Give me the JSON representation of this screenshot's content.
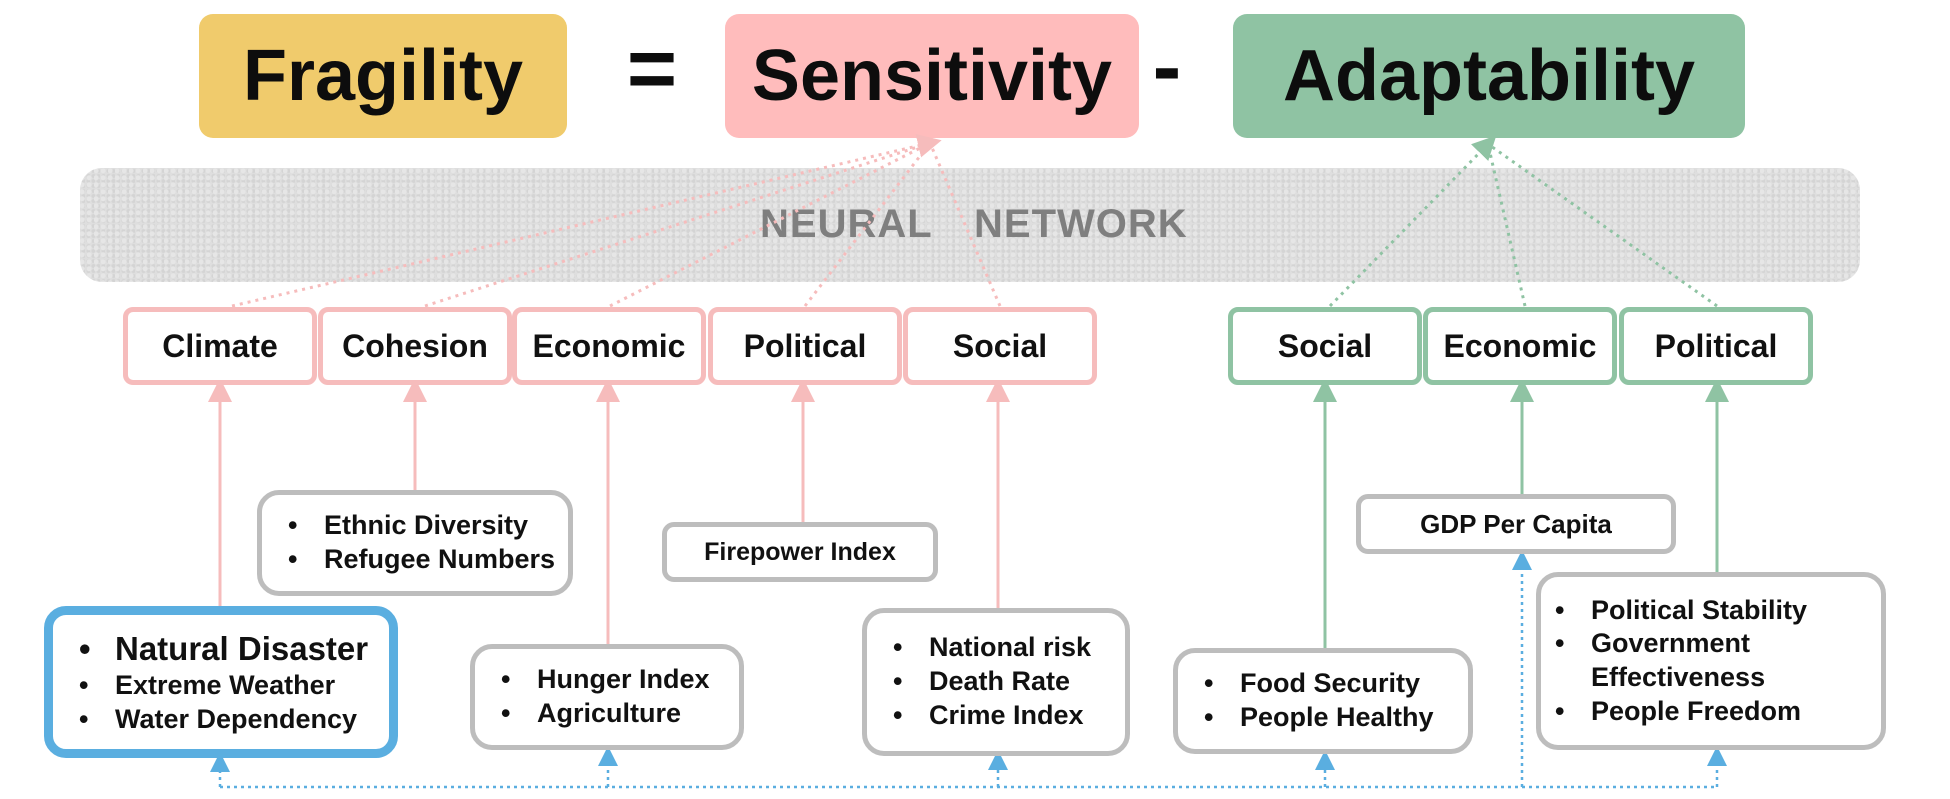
{
  "equation": {
    "fragility": "Fragility",
    "equals": "=",
    "sensitivity": "Sensitivity",
    "minus": "-",
    "adaptability": "Adaptability"
  },
  "network": {
    "word1": "NEURAL",
    "word2": "NETWORK"
  },
  "sensitivity_categories": [
    "Climate",
    "Cohesion",
    "Economic",
    "Political",
    "Social"
  ],
  "adaptability_categories": [
    "Social",
    "Economic",
    "Political"
  ],
  "indicators": {
    "climate": [
      "Natural Disaster",
      "Extreme Weather",
      "Water Dependency"
    ],
    "cohesion": [
      "Ethnic Diversity",
      "Refugee Numbers"
    ],
    "economic": [
      "Hunger Index",
      "Agriculture"
    ],
    "political": "Firepower Index",
    "social": [
      "National risk",
      "Death Rate",
      "Crime Index"
    ],
    "adapt_social": [
      "Food Security",
      "People Healthy"
    ],
    "adapt_economic": "GDP Per Capita",
    "adapt_political": [
      "Political Stability",
      "Government Effectiveness",
      "People  Freedom"
    ]
  },
  "colors": {
    "fragility": "#f0cb6c",
    "sensitivity": "#ffbcbc",
    "adaptability": "#8fc3a3",
    "sensitivity_line": "#f6bcbc",
    "adaptability_line": "#8fc3a3",
    "selected": "#5aaee0",
    "feedback": "#5aaee0"
  }
}
